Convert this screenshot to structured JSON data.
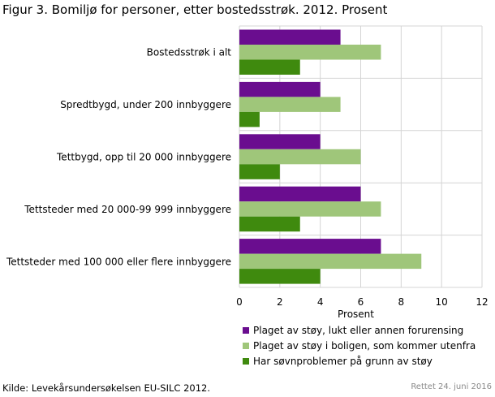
{
  "title": "Figur 3. Bomiljø for personer, etter bostedsstrøk. 2012. Prosent",
  "source": "Kilde: Levekårsundersøkelsen EU-SILC 2012.",
  "revision": "Rettet 24. juni 2016",
  "chart_data": {
    "type": "bar",
    "orientation": "horizontal",
    "xlabel": "Prosent",
    "xlim": [
      0,
      12
    ],
    "xticks": [
      "0",
      "2",
      "4",
      "6",
      "8",
      "10",
      "12"
    ],
    "grid": true,
    "legend_position": "bottom-right",
    "categories": [
      "Bostedsstrøk i alt",
      "Spredtbygd, under 200 innbyggere",
      "Tettbygd, opp til 20 000 innbyggere",
      "Tettsteder med 20 000-99 999 innbyggere",
      "Tettsteder med 100 000 eller flere innbyggere"
    ],
    "series": [
      {
        "name": "Plaget av støy, lukt eller annen forurensing",
        "color": "#6a0d8f",
        "values": [
          5,
          4,
          4,
          6,
          7
        ]
      },
      {
        "name": "Plaget av støy i boligen, som kommer utenfra",
        "color": "#9fc67a",
        "values": [
          7,
          5,
          6,
          7,
          9
        ]
      },
      {
        "name": "Har søvnproblemer på grunn av støy",
        "color": "#3f8a0e",
        "values": [
          3,
          1,
          2,
          3,
          4
        ]
      }
    ]
  }
}
